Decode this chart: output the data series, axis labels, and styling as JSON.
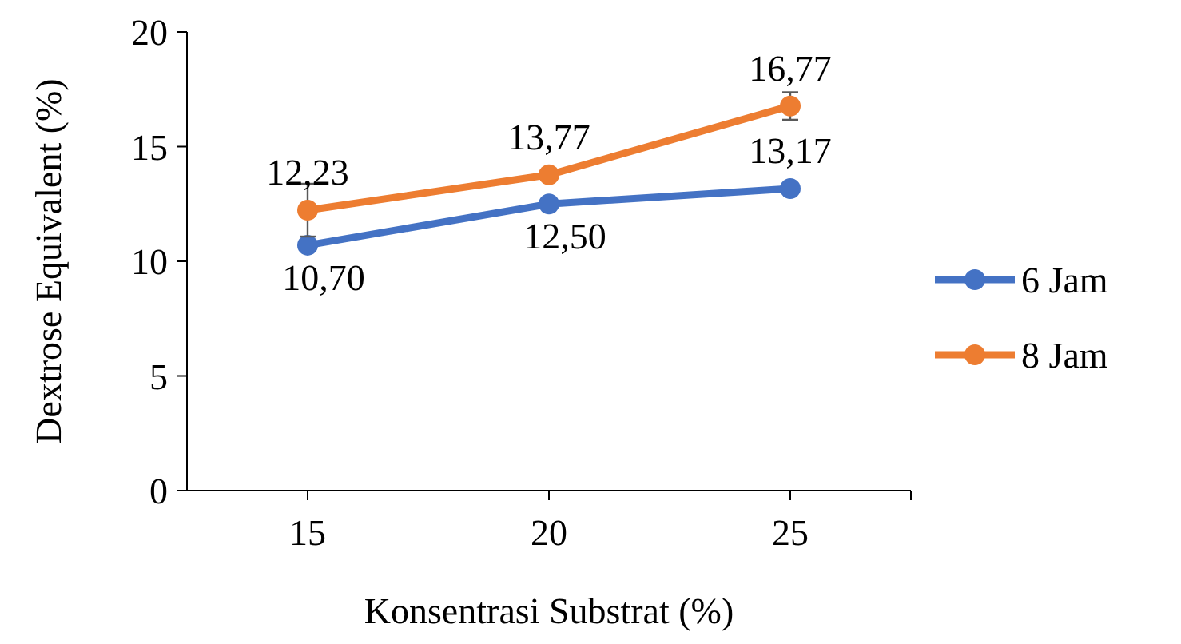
{
  "chart_data": {
    "type": "line",
    "xlabel": "Konsentrasi Substrat (%)",
    "ylabel": "Dextrose Equivalent (%)",
    "categories": [
      "15",
      "20",
      "25"
    ],
    "ylim": [
      0,
      20
    ],
    "yticks": [
      0,
      5,
      10,
      15,
      20
    ],
    "grid": false,
    "legend": "right",
    "marker": "circle",
    "line_style": "solid",
    "series": [
      {
        "name": "6 Jam",
        "color": "#4472c4",
        "values": [
          10.7,
          12.5,
          13.17
        ],
        "value_labels": [
          "10,70",
          "12,50",
          "13,17"
        ]
      },
      {
        "name": "8 Jam",
        "color": "#ed7d31",
        "values": [
          12.23,
          13.77,
          16.77
        ],
        "value_labels": [
          "12,23",
          "13,77",
          "16,77"
        ],
        "errors": [
          1.15,
          null,
          0.6
        ]
      }
    ]
  }
}
